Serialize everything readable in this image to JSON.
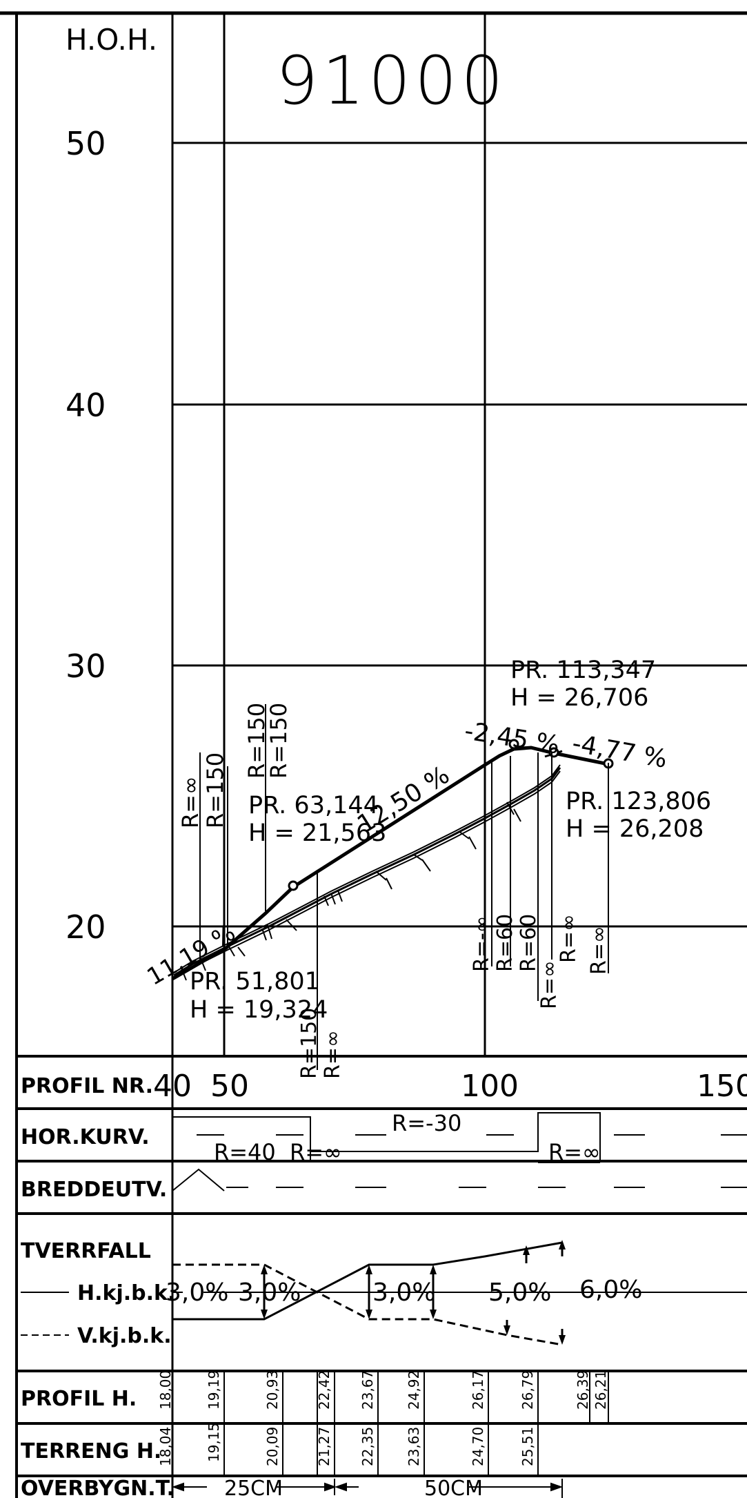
{
  "header": {
    "hoh_label": "H.O.H.",
    "drawing_number": "91000"
  },
  "elevation_scale": {
    "labels": [
      "50",
      "40",
      "30",
      "20"
    ]
  },
  "profile": {
    "grade_annotations": [
      {
        "text": "11,19 %"
      },
      {
        "text": "12,50 %"
      },
      {
        "text": "-2,45 %"
      },
      {
        "text": "-4,77 %"
      }
    ],
    "pr_points": [
      {
        "pr": "PR. 51,801",
        "h": "H = 19,324"
      },
      {
        "pr": "PR. 63,144",
        "h": "H = 21,563"
      },
      {
        "pr": "PR. 113,347",
        "h": "H = 26,706"
      },
      {
        "pr": "PR. 123,806",
        "h": "H = 26,208"
      }
    ],
    "radius_labels": [
      {
        "text": "R=∞"
      },
      {
        "text": "R=150"
      },
      {
        "text": "R=150"
      },
      {
        "text": "R=150"
      },
      {
        "text": "R=150"
      },
      {
        "text": "R=∞"
      },
      {
        "text": "R=-∞"
      },
      {
        "text": "R=60"
      },
      {
        "text": "R=60"
      },
      {
        "text": "R=∞"
      },
      {
        "text": "R=∞"
      },
      {
        "text": "R=∞"
      }
    ]
  },
  "bands": {
    "profil_nr": {
      "label": "PROFIL  NR.",
      "ticks": [
        "40",
        "50",
        "100",
        "150"
      ]
    },
    "hor_kurv": {
      "label": "HOR.KURV.",
      "values": [
        "R=40",
        "R=∞",
        "R=-30",
        "R=∞"
      ]
    },
    "breddeutv": {
      "label": "BREDDEUTV."
    },
    "tverrfall": {
      "label": "TVERRFALL",
      "legend_right": "H.kj.b.k.",
      "legend_left": "V.kj.b.k.",
      "values": [
        "3,0%",
        "3,0%",
        "3,0%",
        "5,0%",
        "6,0%"
      ]
    },
    "profil_h": {
      "label": "PROFIL  H.",
      "values": [
        "18,00",
        "19,19",
        "20,93",
        "22,42",
        "23,67",
        "24,92",
        "26,17",
        "26,79",
        "26,39",
        "26,21"
      ]
    },
    "terreng_h": {
      "label": "TERRENG  H.",
      "values": [
        "18,04",
        "19,15",
        "20,09",
        "21,27",
        "22,35",
        "23,63",
        "24,70",
        "25,51"
      ]
    },
    "overbygn_t": {
      "label": "OVERBYGN.T.",
      "values": [
        "25CM",
        "50CM"
      ]
    }
  }
}
